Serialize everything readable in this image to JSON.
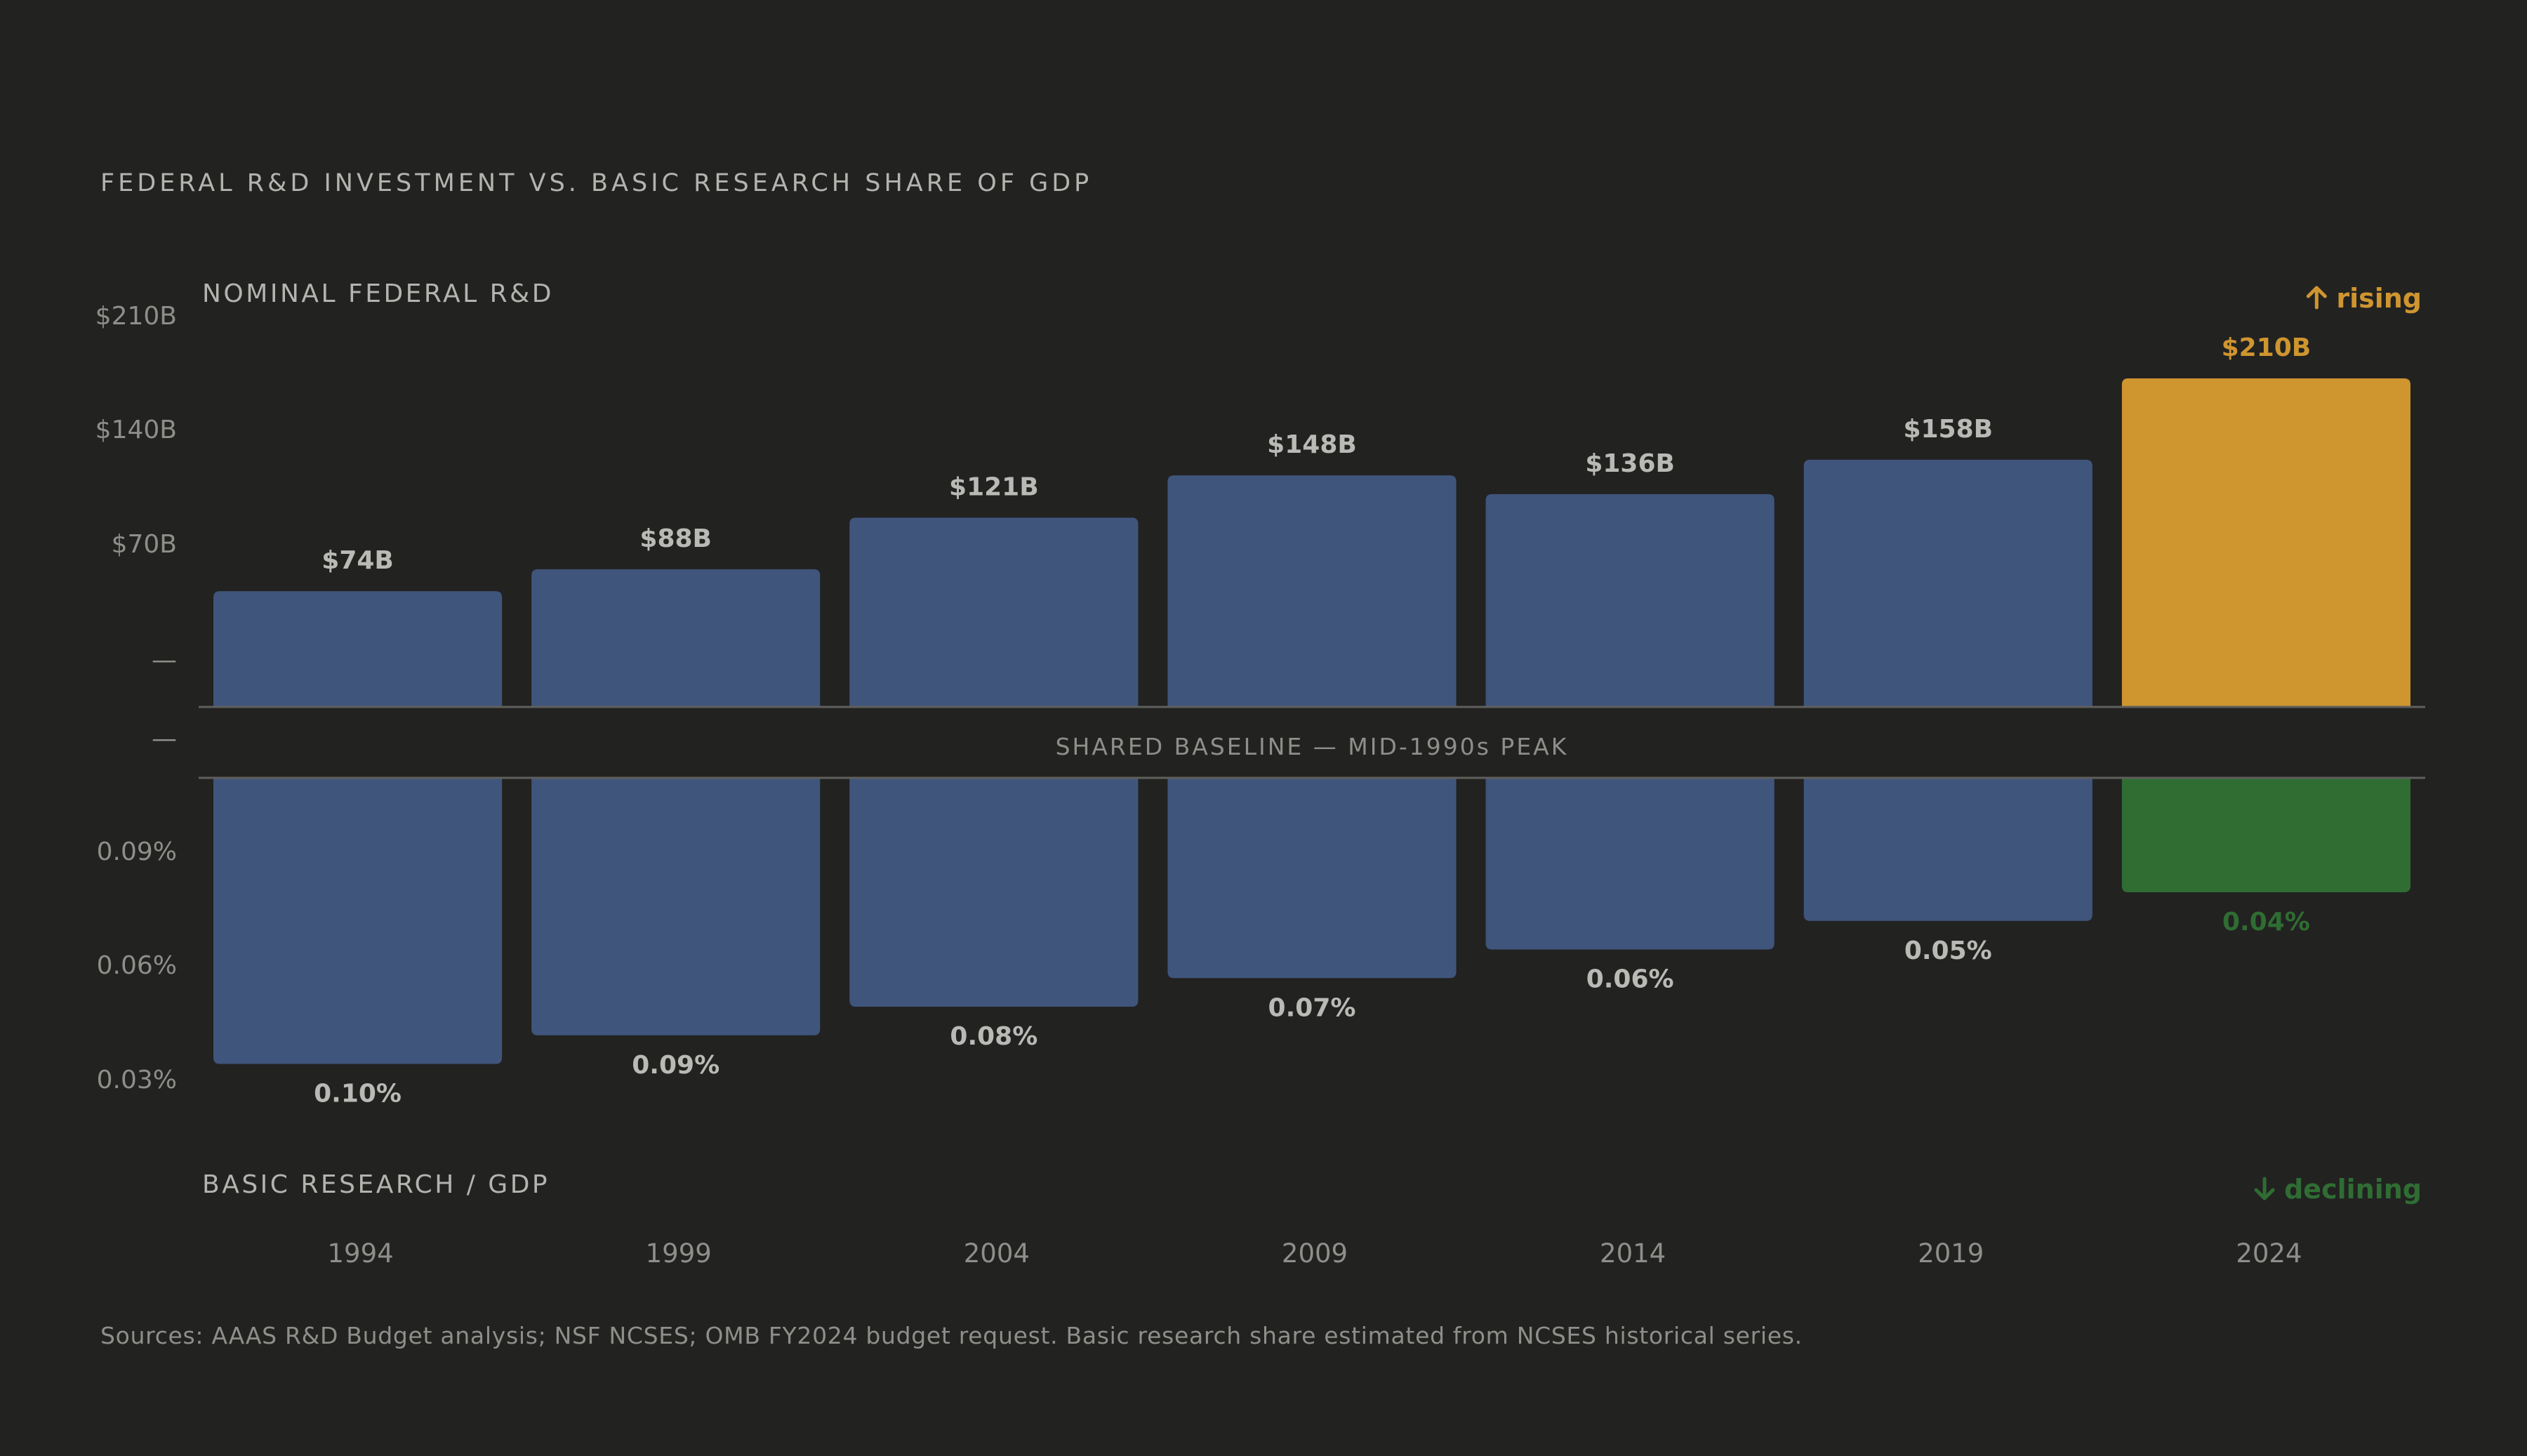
{
  "chart_data": {
    "type": "bar",
    "title": "FEDERAL R&D INVESTMENT VS. BASIC RESEARCH SHARE OF GDP",
    "categories": [
      "1994",
      "1999",
      "2004",
      "2009",
      "2014",
      "2019",
      "2024"
    ],
    "series": [
      {
        "name": "NOMINAL FEDERAL R&D",
        "values": [
          74,
          88,
          121,
          148,
          136,
          158,
          210
        ],
        "value_labels": [
          "$74B",
          "$88B",
          "$121B",
          "$148B",
          "$136B",
          "$158B",
          "$210B"
        ],
        "axis_ticks": [
          "$210B",
          "$140B",
          "$70B",
          "—"
        ],
        "axis_range": [
          0,
          210
        ],
        "direction": "up",
        "trend_label": "rising",
        "trend_icon": "arrow-up-icon"
      },
      {
        "name": "BASIC RESEARCH / GDP",
        "values": [
          0.1,
          0.09,
          0.08,
          0.07,
          0.06,
          0.05,
          0.04
        ],
        "value_labels": [
          "0.10%",
          "0.09%",
          "0.08%",
          "0.07%",
          "0.06%",
          "0.05%",
          "0.04%"
        ],
        "axis_ticks": [
          "—",
          "0.09%",
          "0.06%",
          "0.03%"
        ],
        "axis_range": [
          0.12,
          0.0
        ],
        "direction": "down",
        "trend_label": "declining",
        "trend_icon": "arrow-down-icon"
      }
    ],
    "baseline_label": "SHARED BASELINE — MID-1990s PEAK",
    "source_note": "Sources: AAAS R&D Budget analysis; NSF NCSES; OMB FY2024 budget request. Basic research share estimated from NCSES historical series.",
    "grid": false,
    "legend": "none",
    "colors": {
      "background": "#222221",
      "bar": "#40557c",
      "highlight_top": "#cf952f",
      "highlight_bottom": "#2f6d33",
      "title_text": "#b3b3af",
      "axis_text": "#8e8e8a",
      "value_text": "#b9b9b6",
      "baseline": "#5f5f5c"
    }
  }
}
